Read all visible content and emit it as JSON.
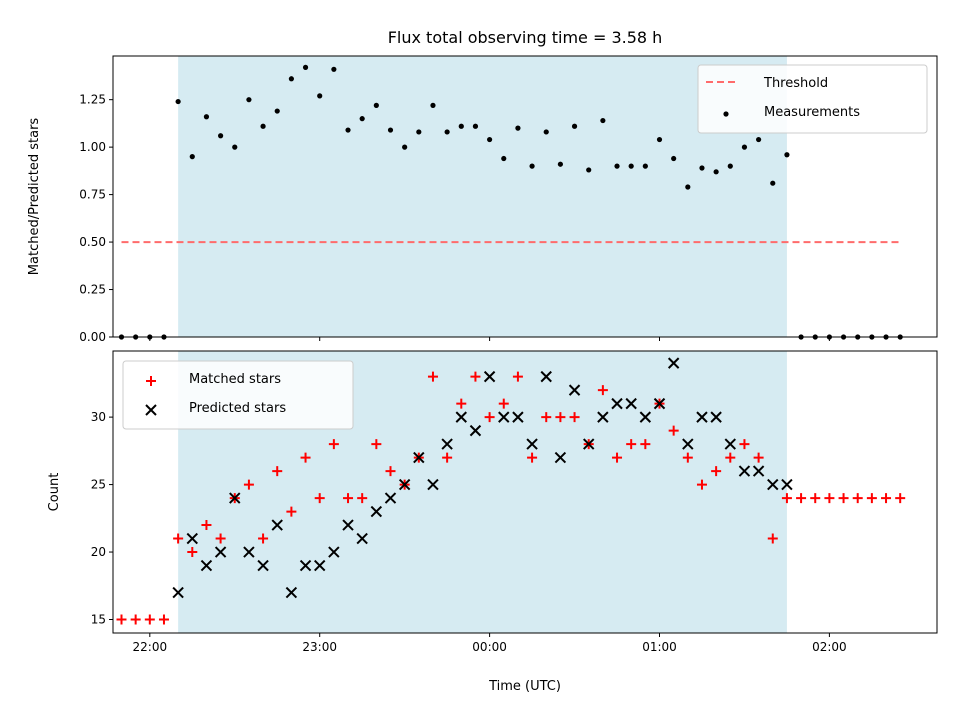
{
  "figure": {
    "title": "Flux total observing time = 3.58 h"
  },
  "chart_data": [
    {
      "type": "scatter",
      "ylabel": "Matched/Predicted stars",
      "ylim": [
        0,
        1.48
      ],
      "yticks": [
        0.0,
        0.25,
        0.5,
        0.75,
        1.0,
        1.25
      ],
      "ytick_labels": [
        "0.00",
        "0.25",
        "0.50",
        "0.75",
        "1.00",
        "1.25"
      ],
      "x_unit": "hours since 00:00 UTC",
      "xlim": [
        "21:47",
        "02:38"
      ],
      "grid": false,
      "shaded_region": {
        "from": "22:10",
        "to": "01:45",
        "color": "#add8e6"
      },
      "legend_position": "top-right",
      "threshold": {
        "name": "Threshold",
        "value": 0.5,
        "x_from": "21:50",
        "x_to": "02:25",
        "color": "#ff6b6b"
      },
      "measurements": {
        "name": "Measurements",
        "color": "#000000",
        "x": [
          "21:50",
          "21:55",
          "22:00",
          "22:05",
          "22:10",
          "22:15",
          "22:20",
          "22:25",
          "22:30",
          "22:35",
          "22:40",
          "22:45",
          "22:50",
          "22:55",
          "23:00",
          "23:05",
          "23:10",
          "23:15",
          "23:20",
          "23:25",
          "23:30",
          "23:35",
          "23:40",
          "23:45",
          "23:50",
          "23:55",
          "00:00",
          "00:05",
          "00:10",
          "00:15",
          "00:20",
          "00:25",
          "00:30",
          "00:35",
          "00:40",
          "00:45",
          "00:50",
          "00:55",
          "01:00",
          "01:05",
          "01:10",
          "01:15",
          "01:20",
          "01:25",
          "01:30",
          "01:35",
          "01:40",
          "01:45",
          "01:50",
          "01:55",
          "02:00",
          "02:05",
          "02:10",
          "02:15",
          "02:20",
          "02:25"
        ],
        "y": [
          0,
          0,
          0,
          0,
          1.24,
          0.95,
          1.16,
          1.06,
          1.0,
          1.25,
          1.11,
          1.19,
          1.36,
          1.42,
          1.27,
          1.41,
          1.09,
          1.15,
          1.22,
          1.09,
          1.0,
          1.08,
          1.22,
          1.08,
          1.11,
          1.11,
          1.04,
          0.94,
          1.1,
          0.9,
          1.08,
          0.91,
          1.11,
          0.88,
          1.14,
          0.9,
          0.9,
          0.9,
          1.04,
          0.94,
          0.79,
          0.89,
          0.87,
          0.9,
          1.0,
          1.04,
          0.81,
          0.96,
          0,
          0,
          0,
          0,
          0,
          0,
          0,
          0
        ]
      }
    },
    {
      "type": "scatter",
      "xlabel": "Time (UTC)",
      "ylabel": "Count",
      "ylim": [
        14,
        34.9
      ],
      "yticks": [
        15,
        20,
        25,
        30
      ],
      "ytick_labels": [
        "15",
        "20",
        "25",
        "30"
      ],
      "xticks": [
        "22:00",
        "23:00",
        "00:00",
        "01:00",
        "02:00"
      ],
      "xtick_labels": [
        "22:00",
        "23:00",
        "00:00",
        "01:00",
        "02:00"
      ],
      "x_unit": "hours since 00:00 UTC",
      "xlim": [
        "21:47",
        "02:38"
      ],
      "grid": false,
      "shaded_region": {
        "from": "22:10",
        "to": "01:45",
        "color": "#add8e6"
      },
      "legend_position": "top-left",
      "series": [
        {
          "name": "Matched stars",
          "marker": "plus",
          "color": "#ff0000",
          "x": [
            "21:50",
            "21:55",
            "22:00",
            "22:05",
            "22:10",
            "22:15",
            "22:20",
            "22:25",
            "22:30",
            "22:35",
            "22:40",
            "22:45",
            "22:50",
            "22:55",
            "23:00",
            "23:05",
            "23:10",
            "23:15",
            "23:20",
            "23:25",
            "23:30",
            "23:35",
            "23:40",
            "23:45",
            "23:50",
            "23:55",
            "00:00",
            "00:05",
            "00:10",
            "00:15",
            "00:20",
            "00:25",
            "00:30",
            "00:35",
            "00:40",
            "00:45",
            "00:50",
            "00:55",
            "01:00",
            "01:05",
            "01:10",
            "01:15",
            "01:20",
            "01:25",
            "01:30",
            "01:35",
            "01:40",
            "01:45",
            "01:50",
            "01:55",
            "02:00",
            "02:05",
            "02:10",
            "02:15",
            "02:20",
            "02:25"
          ],
          "y": [
            15,
            15,
            15,
            15,
            21,
            20,
            22,
            21,
            24,
            25,
            21,
            26,
            23,
            27,
            24,
            28,
            24,
            24,
            28,
            26,
            25,
            27,
            33,
            27,
            31,
            33,
            30,
            31,
            33,
            27,
            30,
            30,
            30,
            28,
            32,
            27,
            28,
            28,
            31,
            29,
            27,
            25,
            26,
            27,
            28,
            27,
            21,
            24,
            24,
            24,
            24,
            24,
            24,
            24,
            24,
            24
          ]
        },
        {
          "name": "Predicted stars",
          "marker": "x",
          "color": "#000000",
          "x": [
            "22:10",
            "22:15",
            "22:20",
            "22:25",
            "22:30",
            "22:35",
            "22:40",
            "22:45",
            "22:50",
            "22:55",
            "23:00",
            "23:05",
            "23:10",
            "23:15",
            "23:20",
            "23:25",
            "23:30",
            "23:35",
            "23:40",
            "23:45",
            "23:50",
            "23:55",
            "00:00",
            "00:05",
            "00:10",
            "00:15",
            "00:20",
            "00:25",
            "00:30",
            "00:35",
            "00:40",
            "00:45",
            "00:50",
            "00:55",
            "01:00",
            "01:05",
            "01:10",
            "01:15",
            "01:20",
            "01:25",
            "01:30",
            "01:35",
            "01:40",
            "01:45"
          ],
          "y": [
            17,
            21,
            19,
            20,
            24,
            20,
            19,
            22,
            17,
            19,
            19,
            20,
            22,
            21,
            23,
            24,
            25,
            27,
            25,
            28,
            30,
            29,
            33,
            30,
            30,
            28,
            33,
            27,
            32,
            28,
            30,
            31,
            31,
            30,
            31,
            34,
            28,
            30,
            30,
            28,
            26,
            26,
            25,
            25
          ]
        }
      ]
    }
  ]
}
